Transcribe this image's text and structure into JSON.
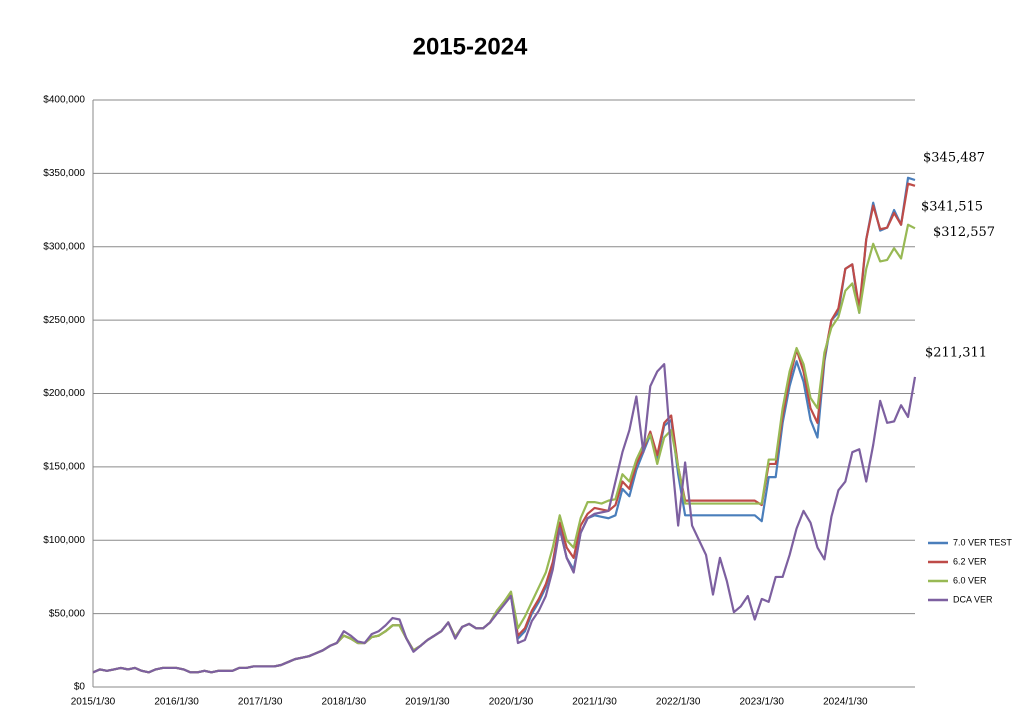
{
  "chart_data": {
    "type": "line",
    "title": "2015-2024",
    "categories": [
      "2015/1/30",
      null,
      null,
      null,
      null,
      null,
      null,
      null,
      null,
      null,
      null,
      null,
      "2016/1/30",
      null,
      null,
      null,
      null,
      null,
      null,
      null,
      null,
      null,
      null,
      null,
      "2017/1/30",
      null,
      null,
      null,
      null,
      null,
      null,
      null,
      null,
      null,
      null,
      null,
      "2018/1/30",
      null,
      null,
      null,
      null,
      null,
      null,
      null,
      null,
      null,
      null,
      null,
      "2019/1/30",
      null,
      null,
      null,
      null,
      null,
      null,
      null,
      null,
      null,
      null,
      null,
      "2020/1/30",
      null,
      null,
      null,
      null,
      null,
      null,
      null,
      null,
      null,
      null,
      null,
      "2021/1/30",
      null,
      null,
      null,
      null,
      null,
      null,
      null,
      null,
      null,
      null,
      null,
      "2022/1/30",
      null,
      null,
      null,
      null,
      null,
      null,
      null,
      null,
      null,
      null,
      null,
      "2023/1/30",
      null,
      null,
      null,
      null,
      null,
      null,
      null,
      null,
      null,
      null,
      null,
      "2024/1/30",
      null,
      null,
      null,
      null,
      null,
      null,
      null,
      null,
      null,
      null
    ],
    "ylim": [
      0,
      400000
    ],
    "yticks": [
      {
        "value": 0,
        "label": "$0"
      },
      {
        "value": 50000,
        "label": "$50,000"
      },
      {
        "value": 100000,
        "label": "$100,000"
      },
      {
        "value": 150000,
        "label": "$150,000"
      },
      {
        "value": 200000,
        "label": "$200,000"
      },
      {
        "value": 250000,
        "label": "$250,000"
      },
      {
        "value": 300000,
        "label": "$300,000"
      },
      {
        "value": 350000,
        "label": "$350,000"
      },
      {
        "value": 400000,
        "label": "$400,000"
      }
    ],
    "grid": true,
    "legend": "right",
    "series": [
      {
        "name": "7.0 VER TEST",
        "color": "#4a7ebb",
        "end_label": "$345,487",
        "values": [
          10000,
          12000,
          11000,
          12000,
          13000,
          12000,
          13000,
          11000,
          10000,
          12000,
          13000,
          13000,
          13000,
          12000,
          10000,
          10000,
          11000,
          10000,
          11000,
          11000,
          11000,
          13000,
          13000,
          14000,
          14000,
          14000,
          14000,
          15000,
          17000,
          19000,
          20000,
          21000,
          23000,
          25000,
          28000,
          30000,
          35000,
          33000,
          30000,
          30000,
          34000,
          35000,
          38000,
          42000,
          42000,
          33000,
          25000,
          28000,
          32000,
          35000,
          38000,
          44000,
          34000,
          41000,
          43000,
          40000,
          40000,
          44000,
          52000,
          58000,
          62000,
          33000,
          38000,
          50000,
          58000,
          68000,
          84000,
          108000,
          88000,
          80000,
          105000,
          115000,
          117000,
          116000,
          115000,
          117000,
          135000,
          130000,
          148000,
          160000,
          172000,
          155000,
          178000,
          182000,
          145000,
          117000,
          117000,
          117000,
          117000,
          117000,
          117000,
          117000,
          117000,
          117000,
          117000,
          117000,
          113000,
          143000,
          143000,
          180000,
          205000,
          222000,
          208000,
          182000,
          170000,
          222000,
          250000,
          255000,
          285000,
          288000,
          255000,
          305000,
          330000,
          311000,
          313000,
          325000,
          315000,
          347000,
          345487
        ]
      },
      {
        "name": "6.2 VER",
        "color": "#be4b48",
        "end_label": "$341,515",
        "values": [
          10000,
          12000,
          11000,
          12000,
          13000,
          12000,
          13000,
          11000,
          10000,
          12000,
          13000,
          13000,
          13000,
          12000,
          10000,
          10000,
          11000,
          10000,
          11000,
          11000,
          11000,
          13000,
          13000,
          14000,
          14000,
          14000,
          14000,
          15000,
          17000,
          19000,
          20000,
          21000,
          23000,
          25000,
          28000,
          30000,
          35000,
          33000,
          30000,
          30000,
          34000,
          35000,
          38000,
          42000,
          42000,
          33000,
          25000,
          28000,
          32000,
          35000,
          38000,
          44000,
          34000,
          41000,
          43000,
          40000,
          40000,
          44000,
          52000,
          58000,
          64000,
          35000,
          40000,
          52000,
          60000,
          70000,
          85000,
          112000,
          95000,
          88000,
          110000,
          118000,
          122000,
          121000,
          120000,
          124000,
          140000,
          135000,
          152000,
          162000,
          174000,
          158000,
          180000,
          185000,
          150000,
          127000,
          127000,
          127000,
          127000,
          127000,
          127000,
          127000,
          127000,
          127000,
          127000,
          127000,
          124000,
          152000,
          152000,
          185000,
          210000,
          230000,
          215000,
          190000,
          180000,
          225000,
          250000,
          258000,
          285000,
          288000,
          258000,
          305000,
          328000,
          312000,
          313000,
          323000,
          315000,
          343000,
          341515
        ]
      },
      {
        "name": "6.0 VER",
        "color": "#98b954",
        "end_label": "$312,557",
        "values": [
          10000,
          12000,
          11000,
          12000,
          13000,
          12000,
          13000,
          11000,
          10000,
          12000,
          13000,
          13000,
          13000,
          12000,
          10000,
          10000,
          11000,
          10000,
          11000,
          11000,
          11000,
          13000,
          13000,
          14000,
          14000,
          14000,
          14000,
          15000,
          17000,
          19000,
          20000,
          21000,
          23000,
          25000,
          28000,
          30000,
          35000,
          33000,
          30000,
          30000,
          34000,
          35000,
          38000,
          42000,
          42000,
          33000,
          25000,
          28000,
          32000,
          35000,
          38000,
          44000,
          34000,
          41000,
          43000,
          40000,
          40000,
          44000,
          52000,
          58000,
          65000,
          40000,
          48000,
          58000,
          68000,
          78000,
          95000,
          117000,
          100000,
          95000,
          115000,
          126000,
          126000,
          125000,
          127000,
          128000,
          145000,
          140000,
          155000,
          165000,
          172000,
          152000,
          170000,
          175000,
          150000,
          125000,
          125000,
          125000,
          125000,
          125000,
          125000,
          125000,
          125000,
          125000,
          125000,
          125000,
          125000,
          155000,
          155000,
          190000,
          215000,
          231000,
          220000,
          197000,
          190000,
          228000,
          245000,
          252000,
          270000,
          275000,
          255000,
          285000,
          302000,
          290000,
          291000,
          299000,
          292000,
          315000,
          312557
        ]
      },
      {
        "name": "DCA VER",
        "color": "#7d60a0",
        "end_label": "$211,311",
        "values": [
          10000,
          12000,
          11000,
          12000,
          13000,
          12000,
          13000,
          11000,
          10000,
          12000,
          13000,
          13000,
          13000,
          12000,
          10000,
          10000,
          11000,
          10000,
          11000,
          11000,
          11000,
          13000,
          13000,
          14000,
          14000,
          14000,
          14000,
          15000,
          17000,
          19000,
          20000,
          21000,
          23000,
          25000,
          28000,
          30000,
          38000,
          35000,
          31000,
          30000,
          36000,
          38000,
          42000,
          47000,
          46000,
          33000,
          24000,
          28000,
          32000,
          35000,
          38000,
          44000,
          33000,
          41000,
          43000,
          40000,
          40000,
          44000,
          50000,
          56000,
          62000,
          30000,
          32000,
          45000,
          52000,
          62000,
          80000,
          108000,
          88000,
          78000,
          105000,
          115000,
          118000,
          119000,
          120000,
          140000,
          160000,
          175000,
          198000,
          160000,
          205000,
          215000,
          220000,
          160000,
          110000,
          153000,
          110000,
          100000,
          90000,
          63000,
          88000,
          72000,
          51000,
          55000,
          62000,
          46000,
          60000,
          58000,
          75000,
          75000,
          90000,
          108000,
          120000,
          112000,
          95000,
          87000,
          116000,
          134000,
          140000,
          160000,
          162000,
          140000,
          165000,
          195000,
          180000,
          181000,
          192000,
          184000,
          211311
        ]
      }
    ]
  }
}
